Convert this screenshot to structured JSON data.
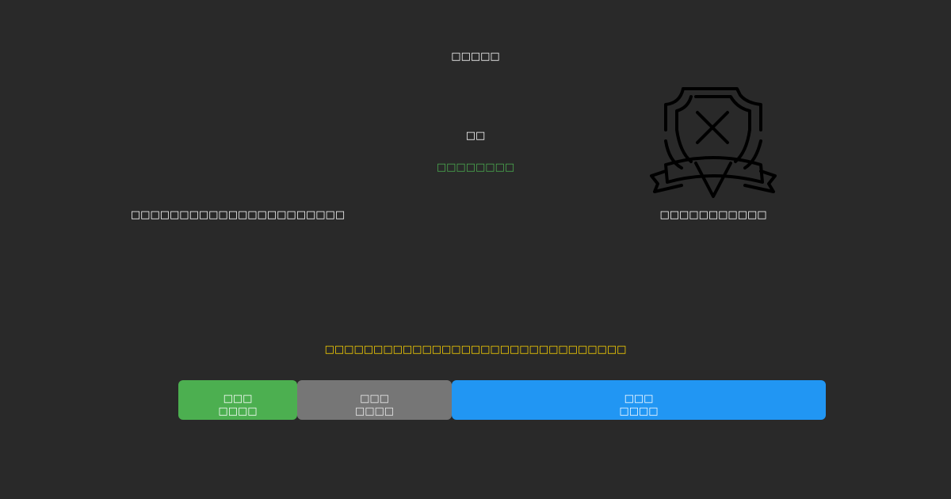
{
  "header": {
    "title": "□□□□□"
  },
  "main": {
    "label": "□□",
    "status": "□□□□□□□□",
    "description_left": "□□□□□□□□□□□□□□□□□□□□□□",
    "icon_caption": "□□□□□□□□□□□",
    "icon": "shield-x-icon",
    "notice": "□□□□□□□□□□□□□□□□□□□□□□□□□□□□□□□"
  },
  "buttons": [
    {
      "line1": "□□□",
      "line2": "□□□□",
      "color": "#4caf50"
    },
    {
      "line1": "□□□",
      "line2": "□□□□",
      "color": "#767676"
    },
    {
      "line1": "□□□",
      "line2": "□□□□",
      "color": "#2196f3"
    }
  ],
  "colors": {
    "background": "#292929",
    "status": "#4caf50",
    "notice": "#ffd600"
  }
}
